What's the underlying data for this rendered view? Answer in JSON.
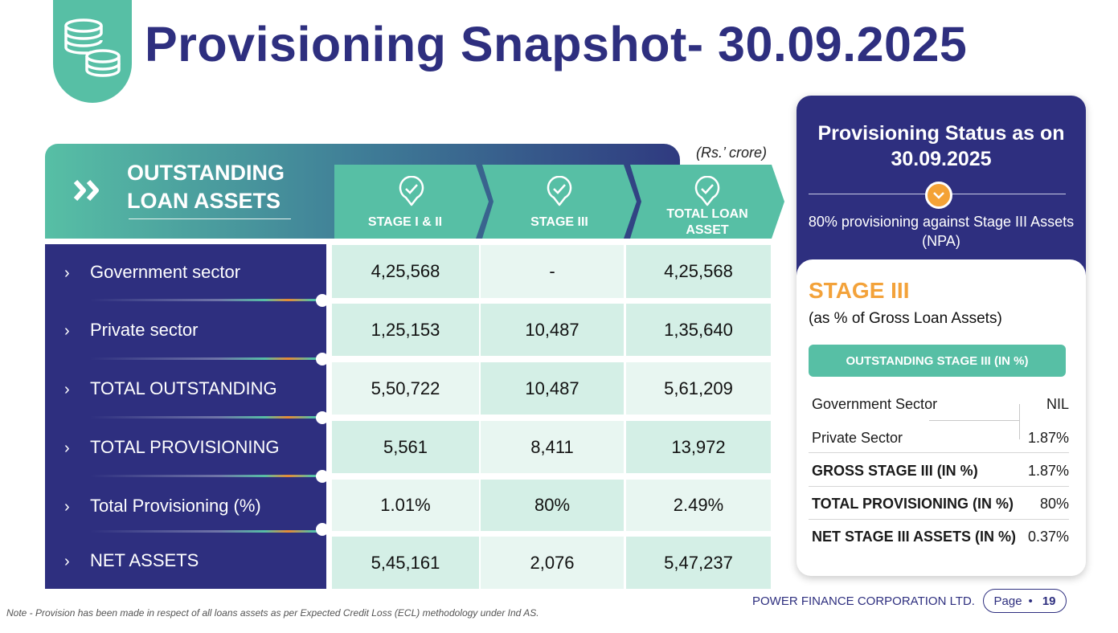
{
  "header": {
    "title": "Provisioning Snapshot- 30.09.2025",
    "icon": "coins-stack-icon"
  },
  "table": {
    "unit_note": "(Rs.’ crore)",
    "section_title": "OUTSTANDING LOAN ASSETS",
    "columns": [
      "STAGE I & II",
      "STAGE III",
      "TOTAL LOAN ASSET"
    ],
    "rows": [
      {
        "label": "Government sector",
        "values": [
          "4,25,568",
          "-",
          "4,25,568"
        ]
      },
      {
        "label": "Private sector",
        "values": [
          "1,25,153",
          "10,487",
          "1,35,640"
        ]
      },
      {
        "label": "TOTAL OUTSTANDING",
        "values": [
          "5,50,722",
          "10,487",
          "5,61,209"
        ]
      },
      {
        "label": "TOTAL PROVISIONING",
        "values": [
          "5,561",
          "8,411",
          "13,972"
        ]
      },
      {
        "label": "Total Provisioning (%)",
        "values": [
          "1.01%",
          "80%",
          "2.49%"
        ]
      },
      {
        "label": "NET ASSETS",
        "values": [
          "5,45,161",
          "2,076",
          "5,47,237"
        ]
      }
    ]
  },
  "status_card": {
    "title": "Provisioning Status as on 30.09.2025",
    "subtitle": "80% provisioning against Stage III Assets (NPA)",
    "stage_title": "STAGE III",
    "stage_subtitle": "(as % of Gross Loan Assets)",
    "button_label": "OUTSTANDING STAGE III (IN %)",
    "rows": [
      {
        "label": "Government Sector",
        "value": "NIL"
      },
      {
        "label": "Private Sector",
        "value": "1.87%"
      },
      {
        "label": "GROSS STAGE III (IN %)",
        "value": "1.87%"
      },
      {
        "label": "TOTAL PROVISIONING (IN %)",
        "value": "80%"
      },
      {
        "label": "NET  STAGE III ASSETS (IN %)",
        "value": "0.37%"
      }
    ]
  },
  "footer": {
    "note": "Note - Provision has been made in respect of all loans assets as per Expected Credit Loss (ECL) methodology under Ind AS.",
    "company": "POWER FINANCE CORPORATION LTD.",
    "page_label": "Page",
    "page_number": "19"
  },
  "colors": {
    "navy": "#2e2f7f",
    "teal": "#57bfa5",
    "orange": "#f3a23a",
    "cell_dark": "#d4efe6",
    "cell_light": "#e8f6f1"
  }
}
